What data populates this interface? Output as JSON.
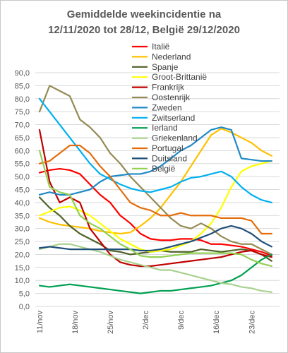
{
  "chart_data": {
    "type": "line",
    "title_line1": "Gemiddelde weekincidentie  na",
    "title_line2": "12/11/2020 tot 28/12, België 29/12/2020",
    "xlabel": "",
    "ylabel": "",
    "ylim": [
      0,
      90
    ],
    "yticks": [
      "0,0",
      "5,0",
      "10,0",
      "15,0",
      "20,0",
      "25,0",
      "30,0",
      "35,0",
      "40,0",
      "45,0",
      "50,0",
      "55,0",
      "60,0",
      "65,0",
      "70,0",
      "75,0",
      "80,0",
      "85,0",
      "90,0"
    ],
    "xtick_labels": [
      "11/nov",
      "18/nov",
      "25/nov",
      "2/dec",
      "9/dec",
      "16/dec",
      "23/dec"
    ],
    "x_days": [
      0,
      2,
      4,
      6,
      8,
      10,
      12,
      14,
      16,
      18,
      20,
      22,
      24,
      26,
      28,
      30,
      32,
      34,
      36,
      38,
      40,
      42,
      44,
      46
    ],
    "grid": true,
    "legend_position": "top-right",
    "series": [
      {
        "name": "Italië",
        "color": "#ff0000",
        "values": [
          51.5,
          52.5,
          53,
          52.5,
          51,
          47,
          43,
          40,
          35,
          32,
          28,
          26,
          25.5,
          25.5,
          26,
          26,
          25.5,
          24,
          24,
          23.5,
          23,
          22,
          21,
          19.5
        ]
      },
      {
        "name": "Nederland",
        "color": "#ffc000",
        "values": [
          34,
          32.5,
          31.5,
          31,
          30.5,
          30,
          29,
          28.5,
          28,
          28.5,
          31,
          34,
          38,
          43,
          48,
          54,
          60,
          66,
          68.5,
          67,
          65,
          63,
          60,
          58
        ]
      },
      {
        "name": "Spanje",
        "color": "#4f6228",
        "values": [
          42,
          38,
          35,
          31,
          28,
          26,
          24,
          21.5,
          21,
          20,
          20.5,
          21,
          21.5,
          21,
          21,
          21,
          22,
          21.5,
          21,
          21.5,
          22,
          21.5,
          20,
          17.5
        ]
      },
      {
        "name": "Groot-Brittanië",
        "color": "#ffff00",
        "values": [
          35,
          36.5,
          38,
          38.5,
          37,
          35,
          32,
          29,
          26,
          24,
          22,
          21,
          21.5,
          22,
          23.5,
          25,
          28,
          32,
          38,
          46,
          52,
          54,
          55,
          56
        ]
      },
      {
        "name": "Frankrijk",
        "color": "#c00000",
        "values": [
          68,
          48,
          40,
          42,
          40,
          30,
          25,
          20,
          17,
          16,
          15.5,
          15.5,
          16,
          16.5,
          17,
          17.5,
          18,
          18.5,
          19,
          20,
          21,
          21.5,
          20,
          19
        ]
      },
      {
        "name": "Oostenrijk",
        "color": "#948a54",
        "values": [
          75,
          85,
          83,
          81,
          72,
          69,
          65,
          59,
          55,
          50,
          46,
          42,
          38,
          34,
          31,
          30,
          32,
          30,
          27,
          25,
          24,
          24,
          22,
          20
        ]
      },
      {
        "name": "Zweden",
        "color": "#1f8ac7",
        "values": [
          43,
          44,
          43,
          43,
          44,
          45,
          48,
          50,
          50.5,
          51,
          51,
          52,
          54,
          57,
          60,
          62,
          65,
          68,
          69,
          68,
          57,
          56.5,
          56,
          56
        ]
      },
      {
        "name": "Zwitserland",
        "color": "#00b0f0",
        "values": [
          80,
          75,
          70,
          65,
          60,
          55,
          51,
          49,
          47,
          45.5,
          44.5,
          44,
          45,
          46,
          48,
          49.5,
          50,
          51,
          52,
          50,
          46,
          43,
          41,
          40
        ]
      },
      {
        "name": "Ierland",
        "color": "#00a050",
        "values": [
          8,
          7.5,
          8,
          8.5,
          8,
          7.5,
          7,
          6.5,
          6,
          5.5,
          5,
          5.5,
          6,
          6,
          6.5,
          7,
          7.5,
          8,
          9,
          10,
          12,
          15,
          18,
          20
        ]
      },
      {
        "name": "Griekenland",
        "color": "#a9d18e",
        "values": [
          22,
          23,
          24,
          24,
          23,
          22,
          21,
          19.5,
          18,
          17,
          16,
          15,
          14,
          14,
          13,
          12,
          11,
          10,
          9,
          8.5,
          7.5,
          7,
          6,
          5.5
        ]
      },
      {
        "name": "Portugal",
        "color": "#e46c0a",
        "values": [
          55,
          56,
          59,
          62,
          62,
          59,
          54,
          50,
          45,
          40,
          38,
          37,
          35,
          35,
          36,
          35,
          35,
          35,
          34,
          34,
          34,
          33,
          28,
          28
        ]
      },
      {
        "name": "Duitsland",
        "color": "#1f4e79",
        "values": [
          22.5,
          23,
          22.5,
          22,
          22,
          22,
          22,
          22,
          22,
          22,
          21.5,
          21.5,
          22,
          23,
          24,
          25,
          26.5,
          28,
          30,
          31,
          30,
          28,
          25,
          23
        ]
      },
      {
        "name": "België",
        "color": "#92d050",
        "values": [
          60,
          46,
          44,
          43,
          35,
          32,
          30,
          27,
          24,
          22,
          19.5,
          19,
          19,
          19.5,
          20,
          20.5,
          20.5,
          20.5,
          20.5,
          20.5,
          20,
          18,
          16.5,
          15.5
        ]
      }
    ]
  }
}
